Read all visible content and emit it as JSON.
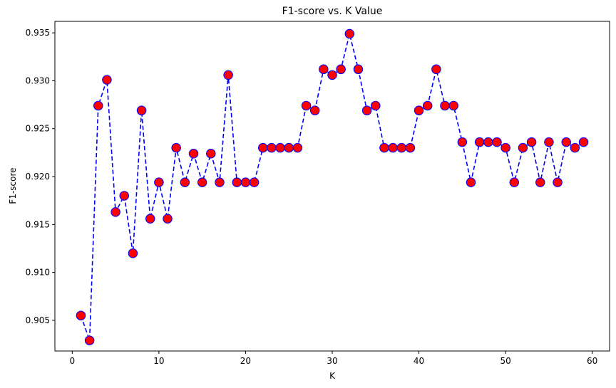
{
  "chart_data": {
    "type": "line",
    "title": "F1-score vs. K Value",
    "xlabel": "K",
    "ylabel": "F1-score",
    "xlim": [
      -2,
      62
    ],
    "ylim": [
      0.9018,
      0.9362
    ],
    "xticks": [
      0,
      10,
      20,
      30,
      40,
      50,
      60
    ],
    "yticks": [
      0.905,
      0.91,
      0.915,
      0.92,
      0.925,
      0.93,
      0.935
    ],
    "grid": false,
    "line_color": "#0000ff",
    "line_style": "dashed",
    "marker_face_color": "#ff0000",
    "marker_edge_color": "#0000ff",
    "series": [
      {
        "x": [
          1,
          2,
          3,
          4,
          5,
          6,
          7,
          8,
          9,
          10,
          11,
          12,
          13,
          14,
          15,
          16,
          17,
          18,
          19,
          20,
          21,
          22,
          23,
          24,
          25,
          26,
          27,
          28,
          29,
          30,
          31,
          32,
          33,
          34,
          35,
          36,
          37,
          38,
          39,
          40,
          41,
          42,
          43,
          44,
          45,
          46,
          47,
          48,
          49,
          50,
          51,
          52,
          53,
          54,
          55,
          56,
          57,
          58,
          59
        ],
        "values": [
          0.9055,
          0.9029,
          0.9274,
          0.9301,
          0.9163,
          0.918,
          0.912,
          0.9269,
          0.9156,
          0.9194,
          0.9156,
          0.923,
          0.9194,
          0.9224,
          0.9194,
          0.9224,
          0.9194,
          0.9306,
          0.9194,
          0.9194,
          0.9194,
          0.923,
          0.923,
          0.923,
          0.923,
          0.923,
          0.9274,
          0.9269,
          0.9312,
          0.9306,
          0.9312,
          0.9349,
          0.9312,
          0.9269,
          0.9274,
          0.923,
          0.923,
          0.923,
          0.923,
          0.9269,
          0.9274,
          0.9312,
          0.9274,
          0.9274,
          0.9236,
          0.9194,
          0.9236,
          0.9236,
          0.9236,
          0.923,
          0.9194,
          0.923,
          0.9236,
          0.9194,
          0.9236,
          0.9194,
          0.9236,
          0.923,
          0.9236
        ]
      }
    ]
  }
}
